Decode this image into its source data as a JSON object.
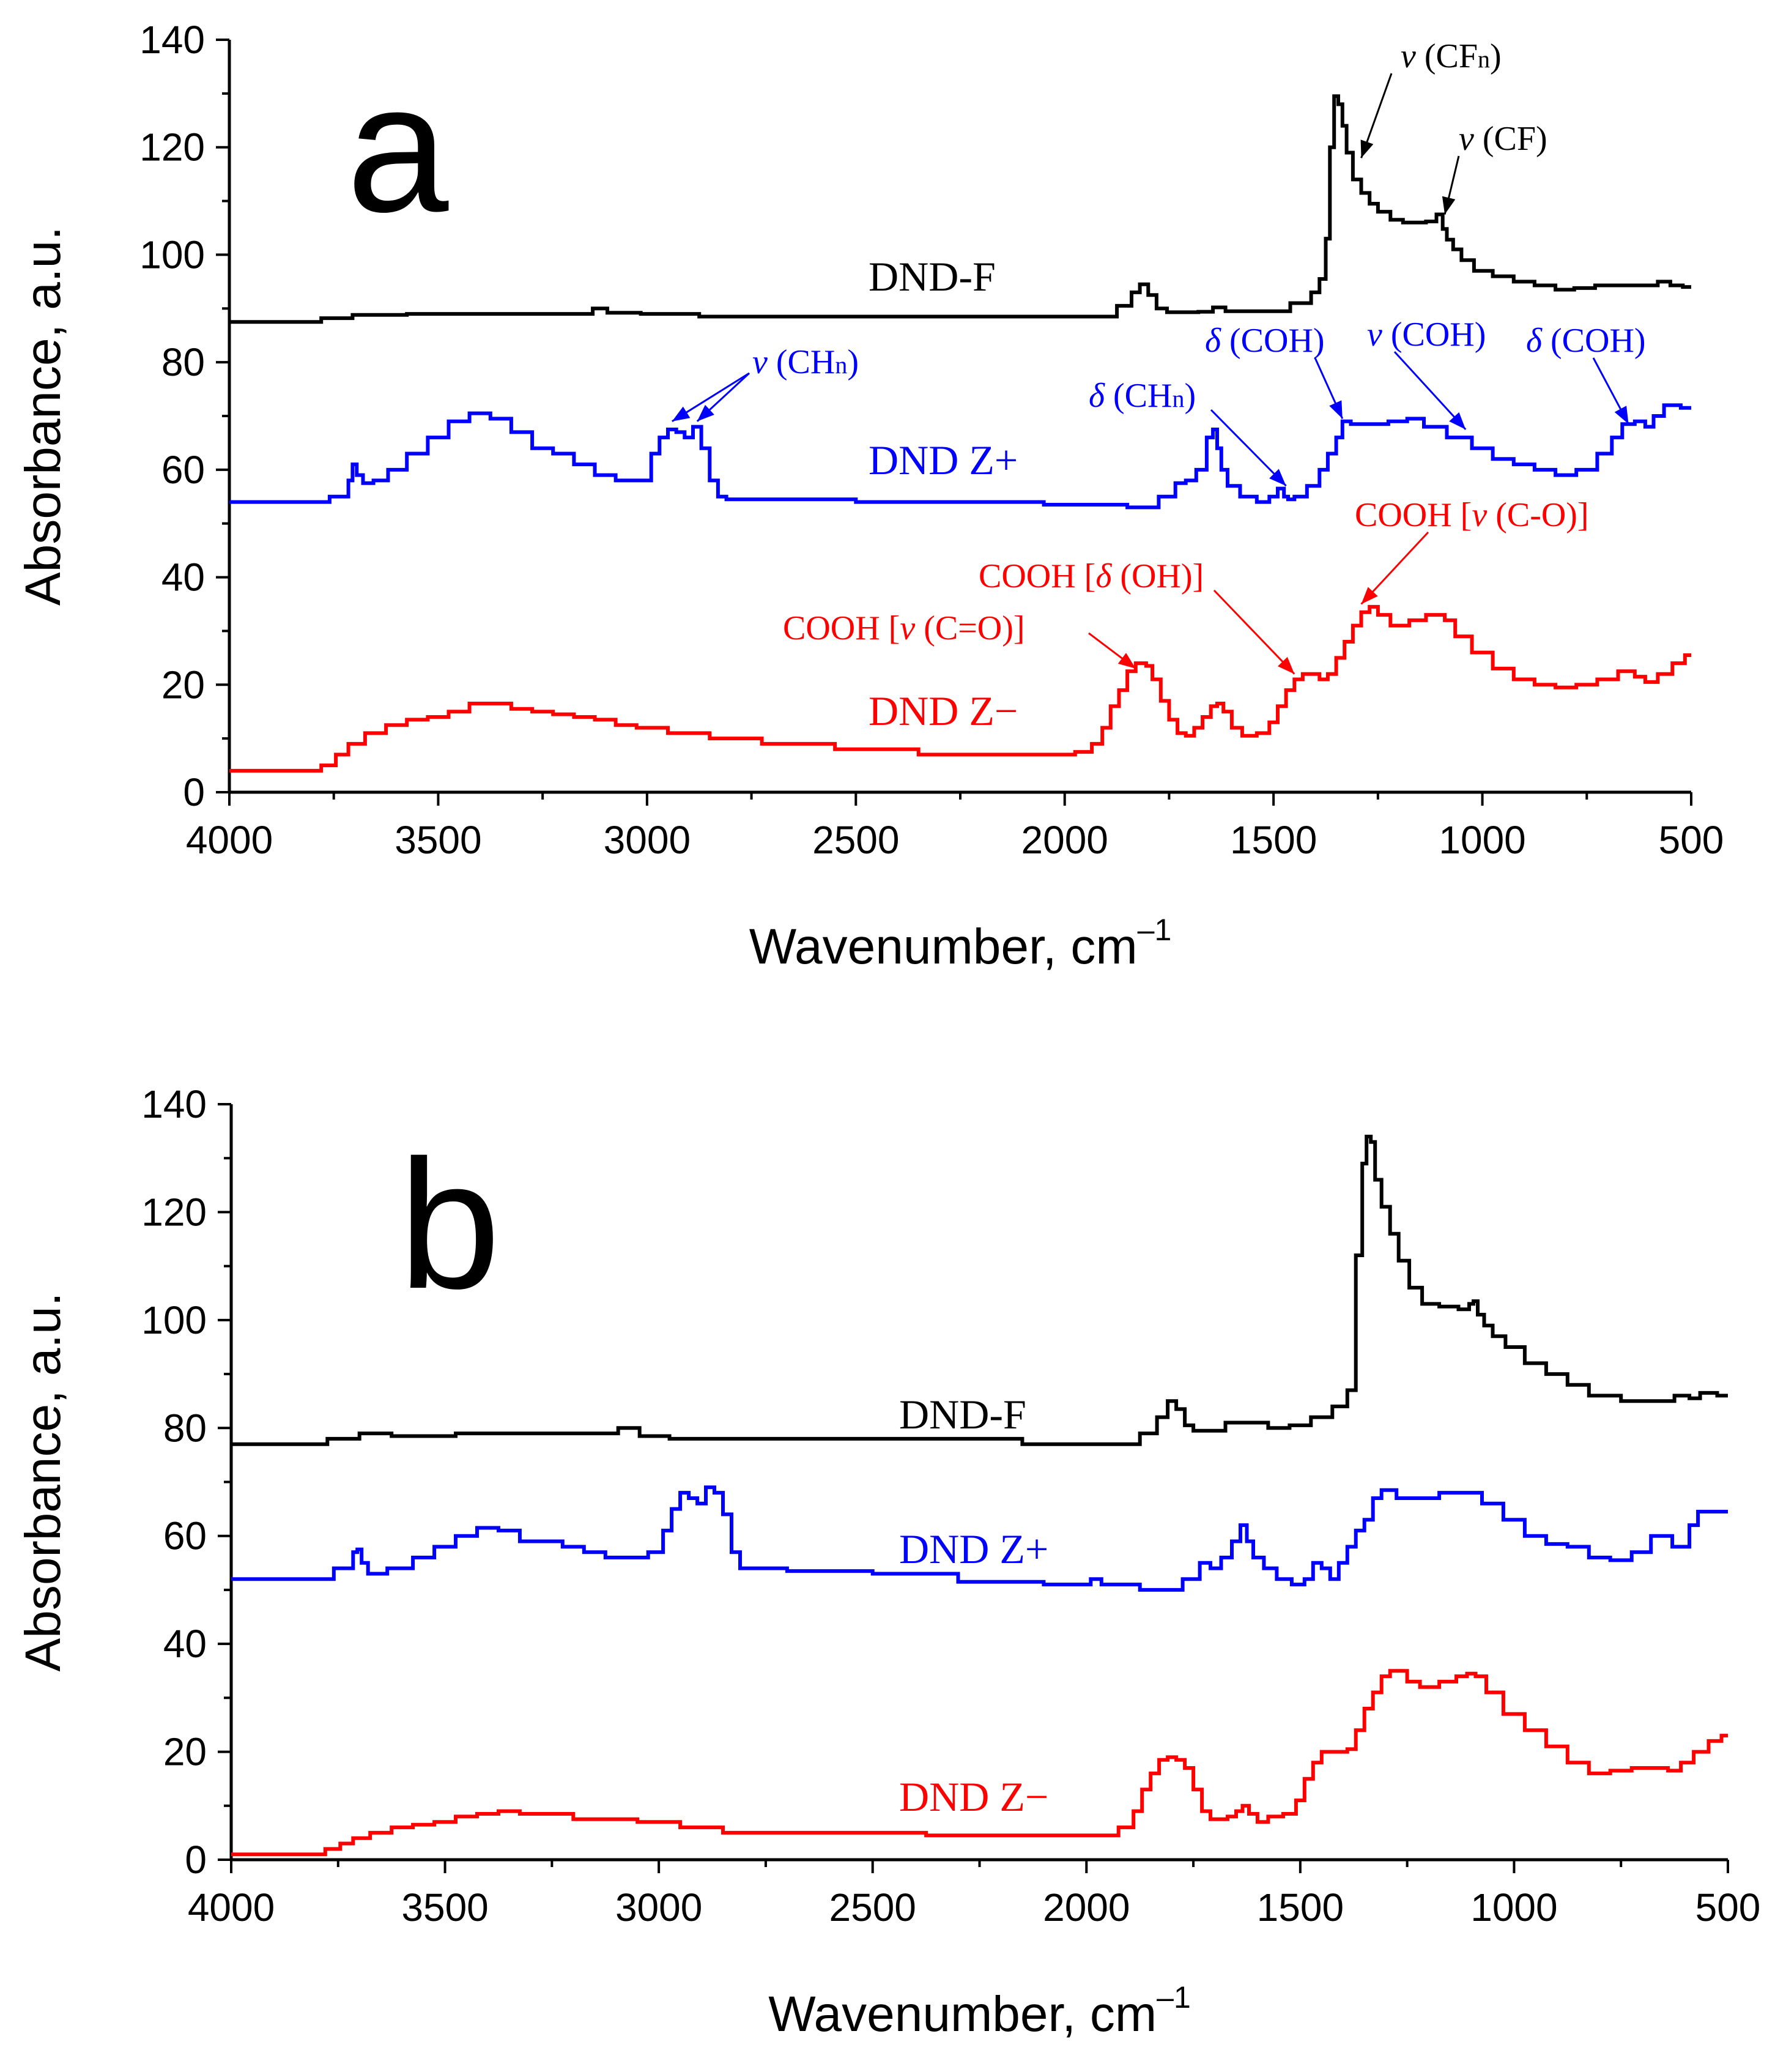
{
  "colors": {
    "dnd_f": "#000000",
    "dnd_zplus": "#0000ff",
    "dnd_zminus": "#ff0000"
  },
  "panels": {
    "a": {
      "letter": "a",
      "x_title": "Wavenumber, cm",
      "x_sup": "–1",
      "y_title": "Absorbance, a.u."
    },
    "b": {
      "letter": "b",
      "x_title": "Wavenumber, cm",
      "x_sup": "–1",
      "y_title": "Absorbance, a.u."
    }
  },
  "chart_data": [
    {
      "type": "line",
      "panel": "a",
      "xlabel": "Wavenumber, cm–1",
      "ylabel": "Absorbance, a.u.",
      "xlim": [
        4000,
        500
      ],
      "ylim": [
        0,
        140
      ],
      "xticks": [
        "4000",
        "3500",
        "3000",
        "2500",
        "2000",
        "1500",
        "1000",
        "500"
      ],
      "yticks": [
        "0",
        "20",
        "40",
        "60",
        "80",
        "100",
        "120",
        "140"
      ],
      "series": [
        {
          "name": "DND-F",
          "color": "#000000",
          "x": [
            4000,
            3800,
            3760,
            3650,
            3500,
            3150,
            3110,
            3080,
            2950,
            2800,
            2500,
            2200,
            1900,
            1850,
            1830,
            1810,
            1790,
            1770,
            1740,
            1700,
            1660,
            1630,
            1600,
            1500,
            1420,
            1400,
            1380,
            1370,
            1360,
            1350,
            1340,
            1330,
            1320,
            1300,
            1280,
            1260,
            1240,
            1200,
            1180,
            1150,
            1120,
            1100,
            1090,
            1080,
            1060,
            1040,
            1000,
            950,
            900,
            850,
            800,
            760,
            700,
            600,
            560,
            540,
            500
          ],
          "values": [
            87.5,
            87.5,
            88.2,
            88.8,
            89.0,
            89.0,
            90.0,
            89.2,
            89.0,
            88.5,
            88.5,
            88.5,
            88.5,
            90.5,
            93.0,
            94.5,
            92.5,
            90.0,
            89.3,
            89.3,
            89.4,
            90.2,
            89.5,
            89.5,
            91.0,
            93.0,
            95.5,
            103,
            120,
            129.5,
            128,
            124,
            119,
            114,
            111.5,
            109.5,
            108,
            106.5,
            106,
            106,
            106.2,
            107.5,
            104.8,
            102.8,
            101,
            99,
            97,
            96,
            95,
            94.3,
            93.5,
            93.8,
            94.3,
            94.3,
            95.0,
            94.3,
            94.0
          ]
        },
        {
          "name": "DND Z+",
          "color": "#0000ff",
          "x": [
            4000,
            3800,
            3720,
            3710,
            3700,
            3690,
            3670,
            3640,
            3600,
            3550,
            3500,
            3450,
            3400,
            3350,
            3300,
            3250,
            3200,
            3150,
            3100,
            3050,
            3000,
            2980,
            2960,
            2940,
            2920,
            2900,
            2880,
            2860,
            2840,
            2820,
            2800,
            2600,
            2400,
            2200,
            1900,
            1800,
            1750,
            1720,
            1700,
            1670,
            1650,
            1640,
            1630,
            1620,
            1600,
            1560,
            1520,
            1500,
            1480,
            1470,
            1460,
            1440,
            1400,
            1380,
            1360,
            1340,
            1330,
            1300,
            1250,
            1200,
            1160,
            1120,
            1050,
            1000,
            950,
            900,
            850,
            800,
            750,
            700,
            680,
            650,
            620,
            600,
            580,
            550,
            500
          ],
          "values": [
            54,
            54,
            55,
            58,
            61,
            59,
            57.5,
            58,
            60,
            63,
            66,
            69,
            70.5,
            69.5,
            67,
            64,
            63,
            61,
            59,
            58,
            58,
            63,
            66,
            67.5,
            67,
            66,
            68,
            64,
            58,
            55,
            54.5,
            54.5,
            54,
            54,
            53.5,
            53,
            55,
            57.5,
            58,
            60,
            66,
            67.5,
            64,
            60,
            57,
            55,
            54,
            55,
            56.5,
            55,
            54.5,
            55,
            57,
            60,
            63,
            66,
            69,
            68.5,
            68.5,
            69,
            69.5,
            68,
            66,
            64,
            62,
            61,
            60,
            59,
            60,
            63,
            66,
            68.5,
            69,
            68,
            70,
            72,
            71.5
          ]
        },
        {
          "name": "DND Z−",
          "color": "#ff0000",
          "x": [
            4000,
            3800,
            3760,
            3730,
            3700,
            3650,
            3600,
            3550,
            3500,
            3450,
            3400,
            3350,
            3300,
            3250,
            3200,
            3150,
            3100,
            3050,
            3000,
            2900,
            2800,
            2650,
            2450,
            2250,
            2100,
            2000,
            1950,
            1920,
            1900,
            1880,
            1860,
            1840,
            1820,
            1810,
            1800,
            1780,
            1760,
            1740,
            1720,
            1700,
            1680,
            1660,
            1640,
            1630,
            1610,
            1590,
            1560,
            1520,
            1500,
            1480,
            1460,
            1440,
            1420,
            1400,
            1380,
            1360,
            1340,
            1320,
            1300,
            1280,
            1260,
            1240,
            1200,
            1150,
            1120,
            1100,
            1080,
            1050,
            1000,
            950,
            900,
            850,
            800,
            750,
            700,
            650,
            620,
            600,
            560,
            530,
            500
          ],
          "values": [
            4,
            4,
            5,
            7,
            9,
            11,
            12.5,
            13.5,
            14,
            15,
            16.5,
            16.5,
            15.5,
            15,
            14.5,
            14,
            13.5,
            12.5,
            12,
            11,
            10,
            9,
            8,
            7,
            7,
            7,
            7.5,
            9,
            12,
            16,
            19,
            22.5,
            24,
            24,
            23.5,
            21,
            17,
            13.5,
            11,
            10.5,
            12,
            14,
            16,
            16.5,
            15,
            12,
            10.5,
            11,
            13,
            16,
            19,
            21,
            22,
            22,
            21,
            22,
            25,
            28,
            31,
            33.5,
            34.5,
            33,
            31,
            32,
            33,
            33,
            32,
            29,
            26,
            23,
            21,
            20,
            19.5,
            20,
            21,
            22.5,
            21.5,
            20.5,
            22,
            24,
            25.5
          ]
        }
      ],
      "series_labels": [
        "DND-F",
        "DND Z+",
        "DND Z−"
      ],
      "annotations": [
        {
          "prefix": "v",
          "text": " (CF",
          "sub": "n",
          "suffix": ")",
          "color": "#000000",
          "target_x": 1290,
          "target_y": 118
        },
        {
          "prefix": "v",
          "text": " (CF)",
          "sub": "",
          "suffix": "",
          "color": "#000000",
          "target_x": 1090,
          "target_y": 107.5
        },
        {
          "prefix": "v",
          "text": " (CH",
          "sub": "n",
          "suffix": ")",
          "color": "#0000ff",
          "target_x": 2940,
          "target_y": 69
        },
        {
          "prefix": "v",
          "text": " (CH",
          "sub": "n",
          "suffix": ")",
          "color": "#0000ff",
          "target_x": 2880,
          "target_y": 69
        },
        {
          "prefix": "δ",
          "text": " (CH",
          "sub": "n",
          "suffix": ")",
          "color": "#0000ff",
          "target_x": 1470,
          "target_y": 57
        },
        {
          "prefix": "δ",
          "text": " (COH)",
          "sub": "",
          "suffix": "",
          "color": "#0000ff",
          "target_x": 1335,
          "target_y": 69.5
        },
        {
          "prefix": "v",
          "text": " (COH)",
          "sub": "",
          "suffix": "",
          "color": "#0000ff",
          "target_x": 1040,
          "target_y": 67.5
        },
        {
          "prefix": "δ",
          "text": " (COH)",
          "sub": "",
          "suffix": "",
          "color": "#0000ff",
          "target_x": 650,
          "target_y": 68.5
        },
        {
          "prefix": "COOH [",
          "italic": "v",
          "text": " (C=O)]",
          "color": "#ff0000",
          "target_x": 1830,
          "target_y": 23
        },
        {
          "prefix": "COOH [",
          "italic": "δ",
          "text": " (OH)]",
          "color": "#ff0000",
          "target_x": 1450,
          "target_y": 22
        },
        {
          "prefix": "COOH [",
          "italic": "v",
          "text": " (C-O)]",
          "color": "#ff0000",
          "target_x": 1290,
          "target_y": 35
        }
      ]
    },
    {
      "type": "line",
      "panel": "b",
      "xlabel": "Wavenumber, cm–1",
      "ylabel": "Absorbance, a.u.",
      "xlim": [
        4000,
        500
      ],
      "ylim": [
        0,
        140
      ],
      "xticks": [
        "4000",
        "3500",
        "3000",
        "2500",
        "2000",
        "1500",
        "1000",
        "500"
      ],
      "yticks": [
        "0",
        "20",
        "40",
        "60",
        "80",
        "100",
        "120",
        "140"
      ],
      "series": [
        {
          "name": "DND-F",
          "color": "#000000",
          "x": [
            4000,
            3800,
            3750,
            3650,
            3600,
            3550,
            3400,
            3100,
            3090,
            3000,
            2950,
            2800,
            2200,
            2100,
            1900,
            1850,
            1820,
            1800,
            1780,
            1760,
            1740,
            1700,
            1650,
            1600,
            1550,
            1500,
            1450,
            1400,
            1380,
            1360,
            1350,
            1340,
            1330,
            1320,
            1300,
            1280,
            1260,
            1230,
            1200,
            1150,
            1110,
            1100,
            1090,
            1080,
            1060,
            1040,
            1000,
            950,
            900,
            850,
            800,
            700,
            650,
            600,
            580,
            550,
            500
          ],
          "values": [
            77,
            77,
            78,
            79,
            78.5,
            78.5,
            79,
            79,
            80,
            78.5,
            78,
            78,
            78,
            77,
            77,
            79,
            82,
            85,
            83.5,
            80.5,
            79.5,
            79.5,
            81,
            81,
            80,
            80.5,
            82,
            84,
            87,
            112,
            129,
            134,
            133,
            126,
            121,
            116,
            111,
            106,
            103,
            102.5,
            102,
            103,
            103.5,
            101,
            99,
            97,
            95,
            92,
            90,
            88,
            86,
            85,
            85,
            86,
            85.5,
            86.5,
            86
          ]
        },
        {
          "name": "DND Z+",
          "color": "#0000ff",
          "x": [
            4000,
            3800,
            3720,
            3710,
            3700,
            3690,
            3670,
            3600,
            3550,
            3500,
            3450,
            3400,
            3350,
            3300,
            3250,
            3200,
            3150,
            3100,
            3050,
            3000,
            2980,
            2960,
            2940,
            2920,
            2900,
            2880,
            2860,
            2840,
            2820,
            2800,
            2600,
            2400,
            2200,
            2000,
            1980,
            1950,
            1800,
            1750,
            1720,
            1700,
            1670,
            1650,
            1630,
            1620,
            1600,
            1570,
            1540,
            1500,
            1480,
            1460,
            1440,
            1420,
            1400,
            1380,
            1360,
            1340,
            1320,
            1300,
            1250,
            1200,
            1150,
            1100,
            1050,
            1000,
            950,
            900,
            850,
            800,
            750,
            700,
            660,
            640,
            620,
            600,
            580,
            560,
            500
          ],
          "values": [
            52,
            52,
            54,
            57,
            57.5,
            55,
            53,
            54,
            56,
            58,
            60,
            61.5,
            61,
            59,
            59,
            58,
            57,
            56,
            56,
            57,
            61,
            65,
            68,
            67,
            66,
            69,
            68,
            64,
            57,
            54,
            53.5,
            53,
            51.5,
            51,
            52,
            51,
            50,
            52,
            55,
            54,
            56,
            59,
            62,
            59,
            56,
            54,
            52,
            51,
            52,
            55,
            54,
            52,
            55,
            58,
            61,
            63,
            67,
            68.5,
            67,
            67,
            68,
            68,
            66,
            63,
            60,
            58.5,
            58,
            56,
            55.5,
            57,
            60,
            60,
            58,
            58,
            62,
            64.5,
            64.5
          ]
        },
        {
          "name": "DND Z−",
          "color": "#ff0000",
          "x": [
            4000,
            3800,
            3760,
            3730,
            3700,
            3650,
            3600,
            3550,
            3500,
            3450,
            3400,
            3350,
            3300,
            3100,
            3000,
            2900,
            2800,
            2450,
            2300,
            2100,
            1950,
            1900,
            1880,
            1860,
            1840,
            1820,
            1800,
            1780,
            1760,
            1740,
            1720,
            1700,
            1680,
            1660,
            1640,
            1630,
            1610,
            1590,
            1560,
            1520,
            1500,
            1480,
            1460,
            1440,
            1420,
            1400,
            1380,
            1360,
            1340,
            1320,
            1300,
            1280,
            1260,
            1240,
            1200,
            1150,
            1120,
            1100,
            1080,
            1050,
            1000,
            950,
            900,
            850,
            800,
            750,
            700,
            660,
            620,
            600,
            560,
            530,
            500
          ],
          "values": [
            1,
            1,
            2,
            3,
            4,
            5,
            6,
            6.5,
            7,
            8,
            8.5,
            9,
            8.5,
            7.5,
            7,
            6,
            5,
            5,
            4.5,
            4.5,
            4.5,
            6,
            9,
            13,
            16,
            18.5,
            19,
            18.5,
            17,
            13,
            9,
            7.5,
            7.5,
            8,
            9,
            10,
            8.5,
            7,
            8,
            8.5,
            11,
            15,
            18,
            20,
            20,
            20,
            20.5,
            24,
            28,
            31,
            34,
            35,
            35,
            33,
            32,
            33,
            34,
            34.5,
            34,
            31,
            27,
            24,
            21,
            18,
            16,
            16.5,
            17,
            17,
            16.5,
            18,
            20,
            22,
            23
          ]
        }
      ],
      "series_labels": [
        "DND-F",
        "DND Z+",
        "DND Z−"
      ],
      "annotations": []
    }
  ]
}
